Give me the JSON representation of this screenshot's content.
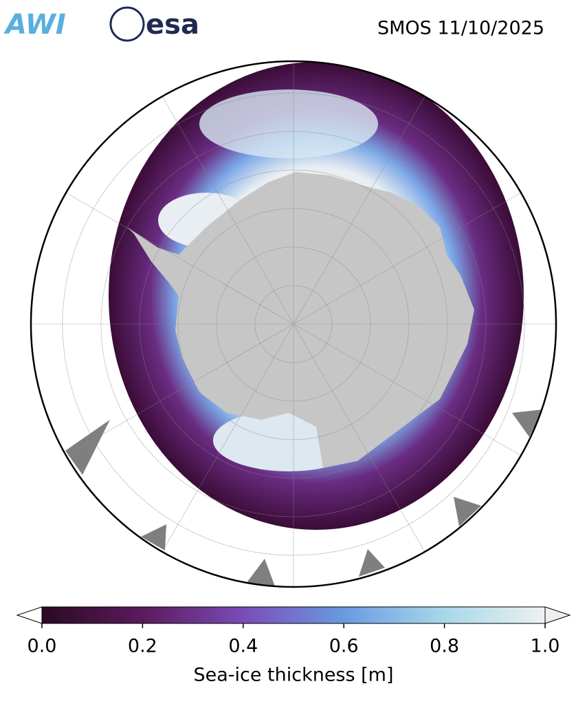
{
  "header": {
    "logos": [
      "AWI",
      "esa"
    ],
    "title": "SMOS 11/10/2025"
  },
  "colorbar": {
    "label": "Sea-ice thickness [m]",
    "lim": [
      0,
      1
    ],
    "ticks": [
      {
        "value": 0,
        "label": "0.0"
      },
      0.2,
      0.4,
      0.6,
      0.8,
      {
        "value": 1,
        "label": "1.0"
      }
    ],
    "colors": [
      "#2a0a24",
      "#5a1a5c",
      "#7a4cb8",
      "#6a9ae0",
      "#a8d8ea",
      "#eef0ef"
    ]
  }
}
